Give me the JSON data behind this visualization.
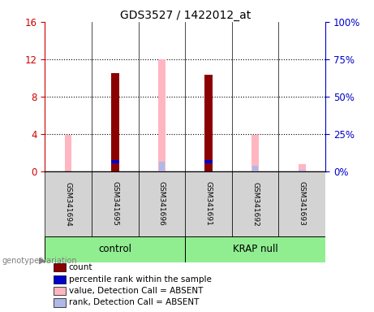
{
  "title": "GDS3527 / 1422012_at",
  "samples": [
    "GSM341694",
    "GSM341695",
    "GSM341696",
    "GSM341691",
    "GSM341692",
    "GSM341693"
  ],
  "groups": [
    "control",
    "control",
    "control",
    "KRAP null",
    "KRAP null",
    "KRAP null"
  ],
  "group_names": [
    "control",
    "KRAP null"
  ],
  "count_values": [
    0,
    10.5,
    0,
    10.3,
    0,
    0
  ],
  "percentile_values": [
    0,
    6.5,
    0,
    6.3,
    0,
    0
  ],
  "absent_value_values": [
    3.9,
    0,
    12.0,
    0,
    3.85,
    0.8
  ],
  "absent_rank_values": [
    0,
    6.5,
    6.4,
    6.3,
    3.75,
    1.15
  ],
  "ylim_left": [
    0,
    16
  ],
  "ylim_right": [
    0,
    100
  ],
  "yticks_left": [
    0,
    4,
    8,
    12,
    16
  ],
  "ytick_labels_left": [
    "0",
    "4",
    "8",
    "12",
    "16"
  ],
  "yticks_right": [
    0,
    25,
    50,
    75,
    100
  ],
  "ytick_labels_right": [
    "0%",
    "25%",
    "50%",
    "75%",
    "100%"
  ],
  "color_count": "#8b0000",
  "color_percentile": "#0000cc",
  "color_absent_value": "#ffb6c1",
  "color_absent_rank": "#b0b8e8",
  "background_color": "#ffffff",
  "left_axis_color": "#cc0000",
  "right_axis_color": "#0000cc",
  "label_genotype": "genotype/variation",
  "dotted_lines": [
    4,
    8,
    12
  ],
  "legend_items": [
    [
      "#8b0000",
      "count"
    ],
    [
      "#0000cc",
      "percentile rank within the sample"
    ],
    [
      "#ffb6c1",
      "value, Detection Call = ABSENT"
    ],
    [
      "#b0b8e8",
      "rank, Detection Call = ABSENT"
    ]
  ]
}
